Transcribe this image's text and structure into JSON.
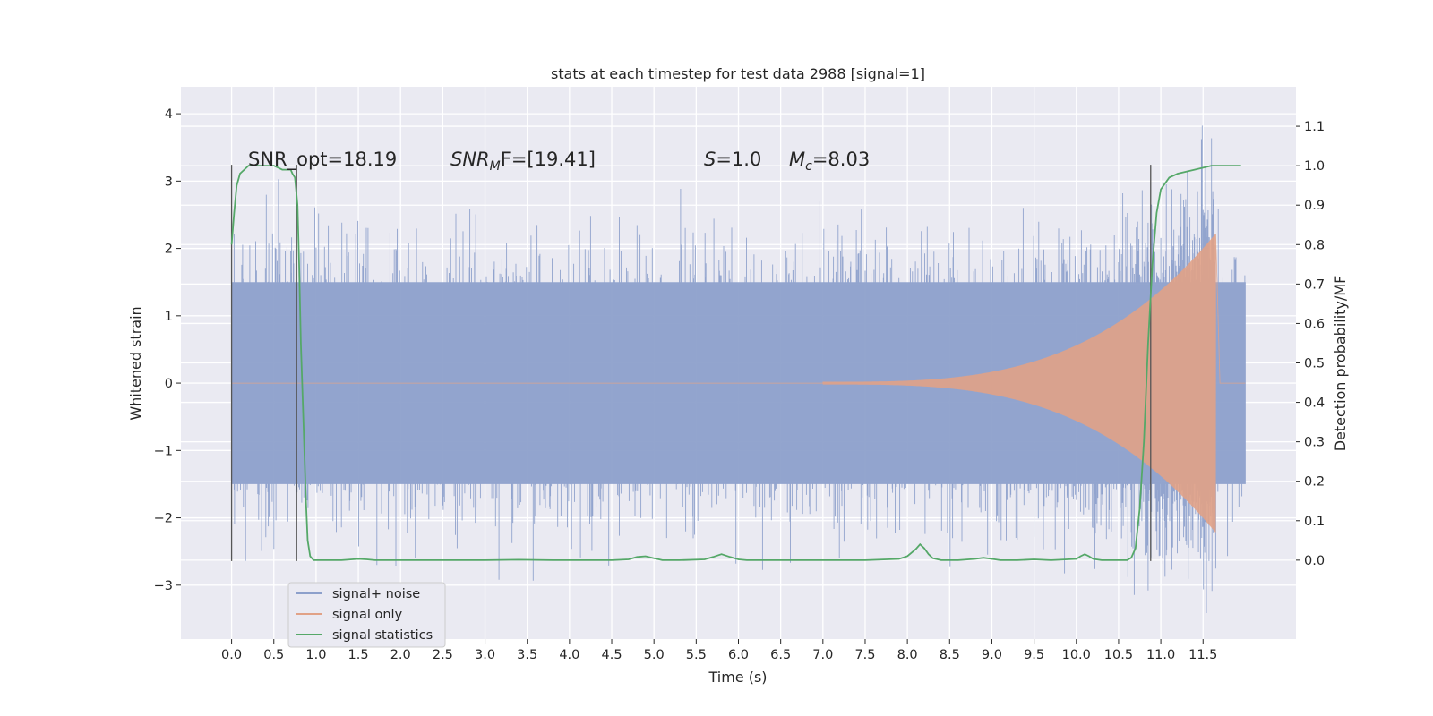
{
  "chart_data": {
    "type": "line",
    "title": "stats at each timestep for test data 2988 [signal=1]",
    "xlabel": "Time (s)",
    "ylabel": "Whitened strain",
    "ylabel_right": "Detection probability/MF",
    "xlim": [
      -0.6,
      12.6
    ],
    "ylim": [
      -3.8,
      4.4
    ],
    "ylim_right": [
      -0.2,
      1.2
    ],
    "x_ticks": [
      "0.0",
      "0.5",
      "1.0",
      "1.5",
      "2.0",
      "2.5",
      "3.0",
      "3.5",
      "4.0",
      "4.5",
      "5.0",
      "5.5",
      "6.0",
      "6.5",
      "7.0",
      "7.5",
      "8.0",
      "8.5",
      "9.0",
      "9.5",
      "10.0",
      "10.5",
      "11.0",
      "11.5"
    ],
    "y_ticks": [
      "−3",
      "−2",
      "−1",
      "0",
      "1",
      "2",
      "3",
      "4"
    ],
    "y_ticks_right": [
      "0.0",
      "0.1",
      "0.2",
      "0.3",
      "0.4",
      "0.5",
      "0.6",
      "0.7",
      "0.8",
      "0.9",
      "1.0",
      "1.1"
    ],
    "grid": true,
    "legend_position": "bottom-left",
    "annotations": {
      "snr_opt": "SNR_opt=18.19",
      "snr_mf_prefix": "SNR",
      "snr_mf_sub": "M",
      "snr_mf_suffix": "F=[19.41]",
      "s_label": "S",
      "s_value": "=1.0",
      "mc_label": "M",
      "mc_sub": "c",
      "mc_value": "=8.03"
    },
    "vertical_markers": [
      0.0,
      0.77,
      10.88
    ],
    "series": [
      {
        "name": "signal+ noise",
        "color": "#8da0cb",
        "axis": "left",
        "description_values": {
          "t_start": 0.0,
          "t_end": 12.0,
          "typical_amplitude": 1.5,
          "min": -3.45,
          "max": 4.1
        }
      },
      {
        "name": "signal only",
        "color": "#e1a287",
        "axis": "left",
        "chirp": {
          "t_start": 7.0,
          "t_merger": 11.65,
          "t_end": 12.0,
          "peak_amplitude": 2.2
        }
      },
      {
        "name": "signal statistics",
        "color": "#55a868",
        "axis": "right",
        "x": [
          0.0,
          0.03,
          0.06,
          0.1,
          0.15,
          0.2,
          0.3,
          0.4,
          0.5,
          0.6,
          0.7,
          0.72,
          0.75,
          0.78,
          0.8,
          0.82,
          0.85,
          0.88,
          0.9,
          0.93,
          0.97,
          1.0,
          1.1,
          1.3,
          1.5,
          1.6,
          1.7,
          2.0,
          2.5,
          3.0,
          3.4,
          3.8,
          4.0,
          4.5,
          4.7,
          4.8,
          4.9,
          5.0,
          5.1,
          5.3,
          5.6,
          5.7,
          5.8,
          5.9,
          6.0,
          6.1,
          6.5,
          7.0,
          7.5,
          7.9,
          8.0,
          8.1,
          8.15,
          8.2,
          8.25,
          8.3,
          8.4,
          8.5,
          8.6,
          8.8,
          8.9,
          9.0,
          9.1,
          9.3,
          9.5,
          9.7,
          10.0,
          10.05,
          10.1,
          10.15,
          10.2,
          10.3,
          10.5,
          10.6,
          10.65,
          10.7,
          10.75,
          10.8,
          10.85,
          10.9,
          10.95,
          11.0,
          11.1,
          11.2,
          11.4,
          11.6,
          11.7,
          11.8,
          11.95
        ],
        "y": [
          0.8,
          0.88,
          0.95,
          0.98,
          0.99,
          1.0,
          1.0,
          1.0,
          1.0,
          0.99,
          0.99,
          0.98,
          0.97,
          0.9,
          0.75,
          0.55,
          0.35,
          0.15,
          0.05,
          0.01,
          0.0,
          0.0,
          0.0,
          0.0,
          0.003,
          0.002,
          0.0,
          0.0,
          0.0,
          0.0,
          0.001,
          0.0,
          0.0,
          0.0,
          0.002,
          0.008,
          0.01,
          0.005,
          0.0,
          0.0,
          0.002,
          0.008,
          0.015,
          0.008,
          0.002,
          0.0,
          0.0,
          0.0,
          0.0,
          0.003,
          0.01,
          0.028,
          0.04,
          0.03,
          0.015,
          0.005,
          0.0,
          0.0,
          0.0,
          0.003,
          0.006,
          0.003,
          0.0,
          0.0,
          0.002,
          0.0,
          0.003,
          0.01,
          0.015,
          0.01,
          0.003,
          0.0,
          0.0,
          0.0,
          0.006,
          0.03,
          0.13,
          0.3,
          0.55,
          0.75,
          0.88,
          0.94,
          0.97,
          0.98,
          0.99,
          1.0,
          1.0,
          1.0,
          1.0
        ]
      }
    ]
  }
}
